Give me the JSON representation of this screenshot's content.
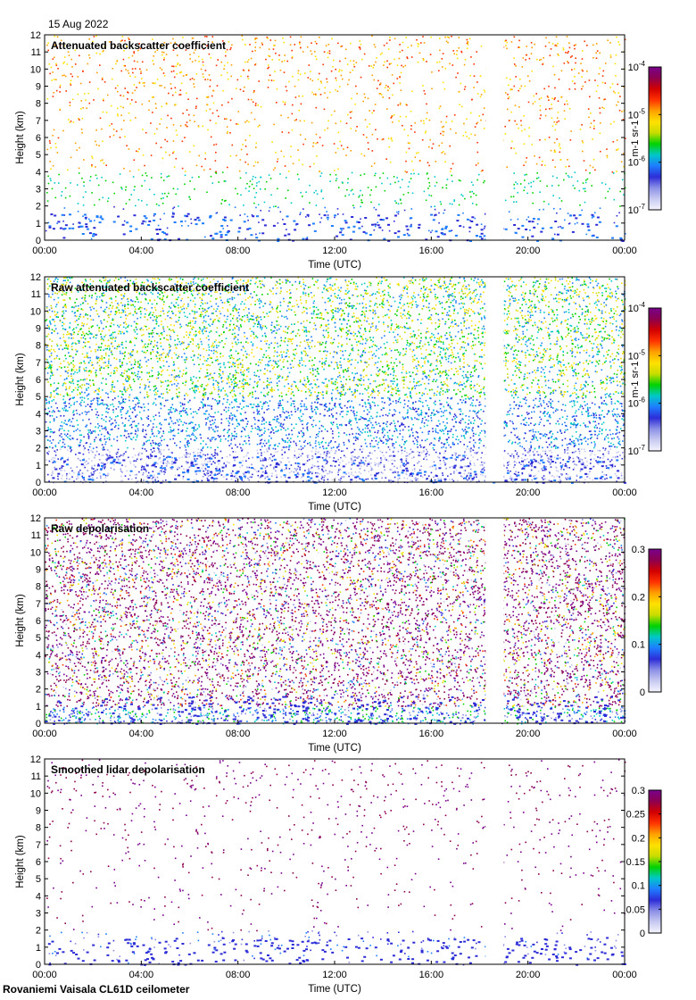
{
  "header": {
    "date": "15 Aug 2022"
  },
  "footer": {
    "station": "Rovaniemi Vaisala CL61D ceilometer"
  },
  "colors": {
    "gap": "#ffffff",
    "colormap": [
      "#f4f4ff",
      "#c8caf0",
      "#8c90e6",
      "#2d2dd7",
      "#1e7dff",
      "#00c8c8",
      "#00d200",
      "#c8dc00",
      "#ffe100",
      "#ffa000",
      "#ff3200",
      "#d20000",
      "#8c0050",
      "#78008c"
    ]
  },
  "chart_data": [
    {
      "type": "heatmap",
      "title": "Attenuated backscatter coefficient",
      "xlabel": "Time (UTC)",
      "ylabel": "Height (km)",
      "xlim": [
        "00:00",
        "24:00"
      ],
      "xticks": [
        "00:00",
        "04:00",
        "08:00",
        "12:00",
        "16:00",
        "20:00",
        "00:00"
      ],
      "ylim": [
        0,
        12
      ],
      "yticks": [
        "0",
        "1",
        "2",
        "3",
        "4",
        "5",
        "6",
        "7",
        "8",
        "9",
        "10",
        "11",
        "12"
      ],
      "data_gap": [
        "18:15",
        "19:00"
      ],
      "colorbar": {
        "scale": "log",
        "min": 1e-07,
        "max": 0.0001,
        "ticks": [
          {
            "base": "10",
            "exp": "-4"
          },
          {
            "base": "10",
            "exp": "-5"
          },
          {
            "base": "10",
            "exp": "-6"
          },
          {
            "base": "10",
            "exp": "-7"
          }
        ],
        "label": "m-1 sr-1"
      }
    },
    {
      "type": "heatmap",
      "title": "Raw attenuated backscatter coefficient",
      "xlabel": "Time (UTC)",
      "ylabel": "Height (km)",
      "xlim": [
        "00:00",
        "24:00"
      ],
      "xticks": [
        "00:00",
        "04:00",
        "08:00",
        "12:00",
        "16:00",
        "20:00",
        "00:00"
      ],
      "ylim": [
        0,
        12
      ],
      "yticks": [
        "0",
        "1",
        "2",
        "3",
        "4",
        "5",
        "6",
        "7",
        "8",
        "9",
        "10",
        "11",
        "12"
      ],
      "data_gap": [
        "18:15",
        "19:00"
      ],
      "colorbar": {
        "scale": "log",
        "min": 1e-07,
        "max": 0.0001,
        "ticks": [
          {
            "base": "10",
            "exp": "-4"
          },
          {
            "base": "10",
            "exp": "-5"
          },
          {
            "base": "10",
            "exp": "-6"
          },
          {
            "base": "10",
            "exp": "-7"
          }
        ],
        "label": "m-1 sr-1"
      }
    },
    {
      "type": "heatmap",
      "title": "Raw depolarisation",
      "xlabel": "Time (UTC)",
      "ylabel": "Height (km)",
      "xlim": [
        "00:00",
        "24:00"
      ],
      "xticks": [
        "00:00",
        "04:00",
        "08:00",
        "12:00",
        "16:00",
        "20:00",
        "00:00"
      ],
      "ylim": [
        0,
        12
      ],
      "yticks": [
        "0",
        "1",
        "2",
        "3",
        "4",
        "5",
        "6",
        "7",
        "8",
        "9",
        "10",
        "11",
        "12"
      ],
      "data_gap": [
        "18:15",
        "19:00"
      ],
      "colorbar": {
        "scale": "linear",
        "min": 0,
        "max": 0.3,
        "ticks": [
          "0.3",
          "0.2",
          "0.1",
          "0"
        ],
        "label": ""
      }
    },
    {
      "type": "heatmap",
      "title": "Smoothed lidar depolarisation",
      "xlabel": "Time (UTC)",
      "ylabel": "Height (km)",
      "xlim": [
        "00:00",
        "24:00"
      ],
      "xticks": [
        "00:00",
        "04:00",
        "08:00",
        "12:00",
        "16:00",
        "20:00",
        "00:00"
      ],
      "ylim": [
        0,
        12
      ],
      "yticks": [
        "0",
        "1",
        "2",
        "3",
        "4",
        "5",
        "6",
        "7",
        "8",
        "9",
        "10",
        "11",
        "12"
      ],
      "data_gap": [
        "18:15",
        "19:00"
      ],
      "colorbar": {
        "scale": "linear",
        "min": 0,
        "max": 0.3,
        "ticks": [
          "0.3",
          "0.25",
          "0.2",
          "0.15",
          "0.1",
          "0.05",
          "0"
        ],
        "label": ""
      }
    }
  ]
}
